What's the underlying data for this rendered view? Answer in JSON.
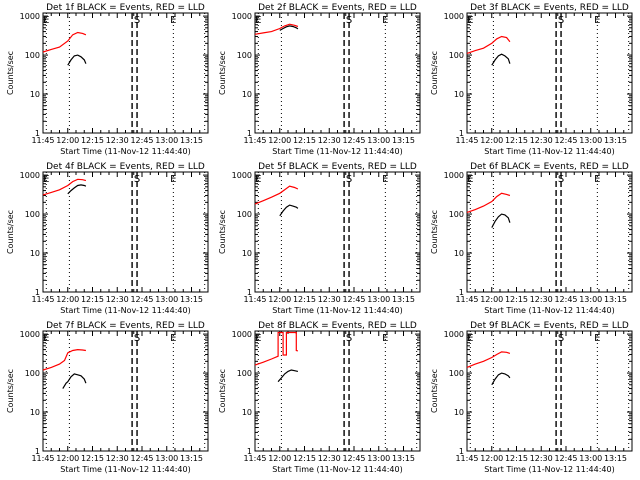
{
  "figure": {
    "y_axis_label": "Counts/sec",
    "x_axis_label": "Start Time (11-Nov-12 11:44:40)"
  },
  "chart_data": [
    {
      "type": "line",
      "title": "Det 1f BLACK = Events, RED = LLD",
      "xlabel": "Start Time (11-Nov-12 11:44:40)",
      "ylabel": "Counts/sec",
      "yscale": "log",
      "ylim": [
        1,
        1200
      ],
      "xlim": [
        "11:45",
        "13:25"
      ],
      "x_ticks": [
        "11:45",
        "12:00",
        "12:15",
        "12:30",
        "12:45",
        "13:00",
        "13:15"
      ],
      "y_ticks": [
        "1",
        "10",
        "100",
        "1000"
      ],
      "markers": [
        {
          "time": "11:47",
          "label": "E",
          "style": "dotted"
        },
        {
          "time": "12:01",
          "label": "",
          "style": "dotted"
        },
        {
          "time": "12:39",
          "label": "",
          "style": "dashed"
        },
        {
          "time": "12:42",
          "label": "S",
          "style": "dashed"
        },
        {
          "time": "13:04",
          "label": "E",
          "style": "dotted"
        },
        {
          "time": "13:23",
          "label": "",
          "style": "dotted"
        }
      ],
      "series": [
        {
          "color": "#ff0000",
          "x": [
            "11:45",
            "11:50",
            "11:55",
            "12:00",
            "12:03",
            "12:06",
            "12:09",
            "12:11"
          ],
          "y": [
            120,
            140,
            160,
            230,
            330,
            380,
            360,
            330
          ]
        },
        {
          "color": "#000000",
          "x": [
            "12:00",
            "12:02",
            "12:04",
            "12:06",
            "12:08",
            "12:10",
            "12:11"
          ],
          "y": [
            55,
            75,
            95,
            100,
            90,
            75,
            60
          ]
        }
      ]
    },
    {
      "type": "line",
      "title": "Det 2f BLACK = Events, RED = LLD",
      "xlabel": "Start Time (11-Nov-12 11:44:40)",
      "ylabel": "Counts/sec",
      "yscale": "log",
      "ylim": [
        1,
        1200
      ],
      "xlim": [
        "11:45",
        "13:25"
      ],
      "x_ticks": [
        "11:45",
        "12:00",
        "12:15",
        "12:30",
        "12:45",
        "13:00",
        "13:15"
      ],
      "y_ticks": [
        "1",
        "10",
        "100",
        "1000"
      ],
      "markers": [
        {
          "time": "11:47",
          "label": "E",
          "style": "dotted"
        },
        {
          "time": "12:01",
          "label": "",
          "style": "dotted"
        },
        {
          "time": "12:39",
          "label": "",
          "style": "dashed"
        },
        {
          "time": "12:42",
          "label": "S",
          "style": "dashed"
        },
        {
          "time": "13:04",
          "label": "E",
          "style": "dotted"
        },
        {
          "time": "13:23",
          "label": "",
          "style": "dotted"
        }
      ],
      "series": [
        {
          "color": "#ff0000",
          "x": [
            "11:45",
            "11:50",
            "11:55",
            "12:00",
            "12:03",
            "12:06",
            "12:09",
            "12:11"
          ],
          "y": [
            340,
            370,
            400,
            480,
            560,
            620,
            580,
            540
          ]
        },
        {
          "color": "#000000",
          "x": [
            "12:00",
            "12:02",
            "12:04",
            "12:06",
            "12:08",
            "12:10",
            "12:11"
          ],
          "y": [
            430,
            480,
            530,
            560,
            540,
            500,
            470
          ]
        }
      ]
    },
    {
      "type": "line",
      "title": "Det 3f BLACK = Events, RED = LLD",
      "xlabel": "Start Time (11-Nov-12 11:44:40)",
      "ylabel": "Counts/sec",
      "yscale": "log",
      "ylim": [
        1,
        1200
      ],
      "xlim": [
        "11:45",
        "13:25"
      ],
      "x_ticks": [
        "11:45",
        "12:00",
        "12:15",
        "12:30",
        "12:45",
        "13:00",
        "13:15"
      ],
      "y_ticks": [
        "1",
        "10",
        "100",
        "1000"
      ],
      "markers": [
        {
          "time": "11:47",
          "label": "E",
          "style": "dotted"
        },
        {
          "time": "12:01",
          "label": "",
          "style": "dotted"
        },
        {
          "time": "12:39",
          "label": "",
          "style": "dashed"
        },
        {
          "time": "12:42",
          "label": "S",
          "style": "dashed"
        },
        {
          "time": "13:04",
          "label": "E",
          "style": "dotted"
        },
        {
          "time": "13:23",
          "label": "",
          "style": "dotted"
        }
      ],
      "series": [
        {
          "color": "#ff0000",
          "x": [
            "11:45",
            "11:50",
            "11:55",
            "12:00",
            "12:03",
            "12:06",
            "12:09",
            "12:11"
          ],
          "y": [
            110,
            130,
            150,
            200,
            260,
            300,
            280,
            220
          ]
        },
        {
          "color": "#000000",
          "x": [
            "12:00",
            "12:02",
            "12:04",
            "12:06",
            "12:08",
            "12:10",
            "12:11"
          ],
          "y": [
            55,
            75,
            95,
            105,
            95,
            80,
            60
          ]
        }
      ]
    },
    {
      "type": "line",
      "title": "Det 4f BLACK = Events, RED = LLD",
      "xlabel": "Start Time (11-Nov-12 11:44:40)",
      "ylabel": "Counts/sec",
      "yscale": "log",
      "ylim": [
        1,
        1200
      ],
      "xlim": [
        "11:45",
        "13:25"
      ],
      "x_ticks": [
        "11:45",
        "12:00",
        "12:15",
        "12:30",
        "12:45",
        "13:00",
        "13:15"
      ],
      "y_ticks": [
        "1",
        "10",
        "100",
        "1000"
      ],
      "markers": [
        {
          "time": "11:47",
          "label": "E",
          "style": "dotted"
        },
        {
          "time": "12:01",
          "label": "",
          "style": "dotted"
        },
        {
          "time": "12:39",
          "label": "",
          "style": "dashed"
        },
        {
          "time": "12:42",
          "label": "S",
          "style": "dashed"
        },
        {
          "time": "13:04",
          "label": "E",
          "style": "dotted"
        },
        {
          "time": "13:23",
          "label": "",
          "style": "dotted"
        }
      ],
      "series": [
        {
          "color": "#ff0000",
          "x": [
            "11:45",
            "11:50",
            "11:55",
            "12:00",
            "12:03",
            "12:06",
            "12:09",
            "12:11"
          ],
          "y": [
            310,
            360,
            420,
            540,
            680,
            780,
            760,
            720
          ]
        },
        {
          "color": "#000000",
          "x": [
            "12:00",
            "12:02",
            "12:04",
            "12:06",
            "12:08",
            "12:10",
            "12:11"
          ],
          "y": [
            330,
            400,
            470,
            540,
            560,
            540,
            520
          ]
        }
      ]
    },
    {
      "type": "line",
      "title": "Det 5f BLACK = Events, RED = LLD",
      "xlabel": "Start Time (11-Nov-12 11:44:40)",
      "ylabel": "Counts/sec",
      "yscale": "log",
      "ylim": [
        1,
        1200
      ],
      "xlim": [
        "11:45",
        "13:25"
      ],
      "x_ticks": [
        "11:45",
        "12:00",
        "12:15",
        "12:30",
        "12:45",
        "13:00",
        "13:15"
      ],
      "y_ticks": [
        "1",
        "10",
        "100",
        "1000"
      ],
      "markers": [
        {
          "time": "11:47",
          "label": "E",
          "style": "dotted"
        },
        {
          "time": "12:01",
          "label": "",
          "style": "dotted"
        },
        {
          "time": "12:39",
          "label": "",
          "style": "dashed"
        },
        {
          "time": "12:42",
          "label": "S",
          "style": "dashed"
        },
        {
          "time": "13:04",
          "label": "E",
          "style": "dotted"
        },
        {
          "time": "13:23",
          "label": "",
          "style": "dotted"
        }
      ],
      "series": [
        {
          "color": "#ff0000",
          "x": [
            "11:45",
            "11:50",
            "11:55",
            "12:00",
            "12:03",
            "12:06",
            "12:09",
            "12:11"
          ],
          "y": [
            180,
            220,
            270,
            340,
            420,
            520,
            480,
            440
          ]
        },
        {
          "color": "#000000",
          "x": [
            "12:00",
            "12:02",
            "12:04",
            "12:06",
            "12:08",
            "12:10",
            "12:11"
          ],
          "y": [
            90,
            120,
            150,
            170,
            160,
            150,
            140
          ]
        }
      ]
    },
    {
      "type": "line",
      "title": "Det 6f BLACK = Events, RED = LLD",
      "xlabel": "Start Time (11-Nov-12 11:44:40)",
      "ylabel": "Counts/sec",
      "yscale": "log",
      "ylim": [
        1,
        1200
      ],
      "xlim": [
        "11:45",
        "13:25"
      ],
      "x_ticks": [
        "11:45",
        "12:00",
        "12:15",
        "12:30",
        "12:45",
        "13:00",
        "13:15"
      ],
      "y_ticks": [
        "1",
        "10",
        "100",
        "1000"
      ],
      "markers": [
        {
          "time": "11:47",
          "label": "E",
          "style": "dotted"
        },
        {
          "time": "12:01",
          "label": "",
          "style": "dotted"
        },
        {
          "time": "12:39",
          "label": "",
          "style": "dashed"
        },
        {
          "time": "12:42",
          "label": "S",
          "style": "dashed"
        },
        {
          "time": "13:04",
          "label": "E",
          "style": "dotted"
        },
        {
          "time": "13:23",
          "label": "",
          "style": "dotted"
        }
      ],
      "series": [
        {
          "color": "#ff0000",
          "x": [
            "11:45",
            "11:50",
            "11:55",
            "12:00",
            "12:03",
            "12:06",
            "12:09",
            "12:11"
          ],
          "y": [
            110,
            130,
            160,
            210,
            280,
            340,
            320,
            300
          ]
        },
        {
          "color": "#000000",
          "x": [
            "12:00",
            "12:02",
            "12:04",
            "12:06",
            "12:08",
            "12:10",
            "12:11"
          ],
          "y": [
            45,
            65,
            85,
            100,
            95,
            80,
            60
          ]
        }
      ]
    },
    {
      "type": "line",
      "title": "Det 7f BLACK = Events, RED = LLD",
      "xlabel": "Start Time (11-Nov-12 11:44:40)",
      "ylabel": "Counts/sec",
      "yscale": "log",
      "ylim": [
        1,
        1200
      ],
      "xlim": [
        "11:45",
        "13:25"
      ],
      "x_ticks": [
        "11:45",
        "12:00",
        "12:15",
        "12:30",
        "12:45",
        "13:00",
        "13:15"
      ],
      "y_ticks": [
        "1",
        "10",
        "100",
        "1000"
      ],
      "markers": [
        {
          "time": "11:47",
          "label": "E",
          "style": "dotted"
        },
        {
          "time": "12:01",
          "label": "",
          "style": "dotted"
        },
        {
          "time": "12:39",
          "label": "",
          "style": "dashed"
        },
        {
          "time": "12:42",
          "label": "S",
          "style": "dashed"
        },
        {
          "time": "13:04",
          "label": "E",
          "style": "dotted"
        },
        {
          "time": "13:23",
          "label": "",
          "style": "dotted"
        }
      ],
      "series": [
        {
          "color": "#ff0000",
          "x": [
            "11:45",
            "11:50",
            "11:55",
            "11:58",
            "12:00",
            "12:03",
            "12:06",
            "12:09",
            "12:11"
          ],
          "y": [
            120,
            140,
            170,
            210,
            330,
            380,
            400,
            390,
            380
          ]
        },
        {
          "color": "#000000",
          "x": [
            "11:57",
            "11:59",
            "12:00",
            "12:02",
            "12:04",
            "12:06",
            "12:08",
            "12:10",
            "12:11"
          ],
          "y": [
            40,
            55,
            60,
            80,
            95,
            90,
            85,
            70,
            55
          ]
        }
      ]
    },
    {
      "type": "line",
      "title": "Det 8f BLACK = Events, RED = LLD",
      "xlabel": "Start Time (11-Nov-12 11:44:40)",
      "ylabel": "Counts/sec",
      "yscale": "log",
      "ylim": [
        1,
        1200
      ],
      "xlim": [
        "11:45",
        "13:25"
      ],
      "x_ticks": [
        "11:45",
        "12:00",
        "12:15",
        "12:30",
        "12:45",
        "13:00",
        "13:15"
      ],
      "y_ticks": [
        "1",
        "10",
        "100",
        "1000"
      ],
      "markers": [
        {
          "time": "11:47",
          "label": "E",
          "style": "dotted"
        },
        {
          "time": "12:01",
          "label": "",
          "style": "dotted"
        },
        {
          "time": "12:39",
          "label": "",
          "style": "dashed"
        },
        {
          "time": "12:42",
          "label": "S",
          "style": "dashed"
        },
        {
          "time": "13:04",
          "label": "E",
          "style": "dotted"
        },
        {
          "time": "13:23",
          "label": "",
          "style": "dotted"
        }
      ],
      "series": [
        {
          "color": "#ff0000",
          "x": [
            "11:45",
            "11:50",
            "11:55",
            "11:59",
            "11:59",
            "12:02",
            "12:02",
            "12:04",
            "12:04",
            "12:10",
            "12:10",
            "12:11"
          ],
          "y": [
            160,
            190,
            230,
            270,
            1100,
            1100,
            290,
            290,
            1100,
            1100,
            380,
            370
          ]
        },
        {
          "color": "#000000",
          "x": [
            "11:59",
            "12:01",
            "12:03",
            "12:05",
            "12:07",
            "12:09",
            "12:11"
          ],
          "y": [
            60,
            75,
            95,
            110,
            120,
            115,
            110
          ]
        }
      ]
    },
    {
      "type": "line",
      "title": "Det 9f BLACK = Events, RED = LLD",
      "xlabel": "Start Time (11-Nov-12 11:44:40)",
      "ylabel": "Counts/sec",
      "yscale": "log",
      "ylim": [
        1,
        1200
      ],
      "xlim": [
        "11:45",
        "13:25"
      ],
      "x_ticks": [
        "11:45",
        "12:00",
        "12:15",
        "12:30",
        "12:45",
        "13:00",
        "13:15"
      ],
      "y_ticks": [
        "1",
        "10",
        "100",
        "1000"
      ],
      "markers": [
        {
          "time": "11:47",
          "label": "E",
          "style": "dotted"
        },
        {
          "time": "12:01",
          "label": "",
          "style": "dotted"
        },
        {
          "time": "12:39",
          "label": "",
          "style": "dashed"
        },
        {
          "time": "12:42",
          "label": "S",
          "style": "dashed"
        },
        {
          "time": "13:04",
          "label": "E",
          "style": "dotted"
        },
        {
          "time": "13:23",
          "label": "",
          "style": "dotted"
        }
      ],
      "series": [
        {
          "color": "#ff0000",
          "x": [
            "11:45",
            "11:50",
            "11:55",
            "12:00",
            "12:03",
            "12:06",
            "12:09",
            "12:11"
          ],
          "y": [
            140,
            170,
            200,
            250,
            300,
            350,
            340,
            320
          ]
        },
        {
          "color": "#000000",
          "x": [
            "12:00",
            "12:02",
            "12:04",
            "12:06",
            "12:08",
            "12:10",
            "12:11"
          ],
          "y": [
            50,
            70,
            90,
            100,
            95,
            85,
            75
          ]
        }
      ]
    }
  ]
}
